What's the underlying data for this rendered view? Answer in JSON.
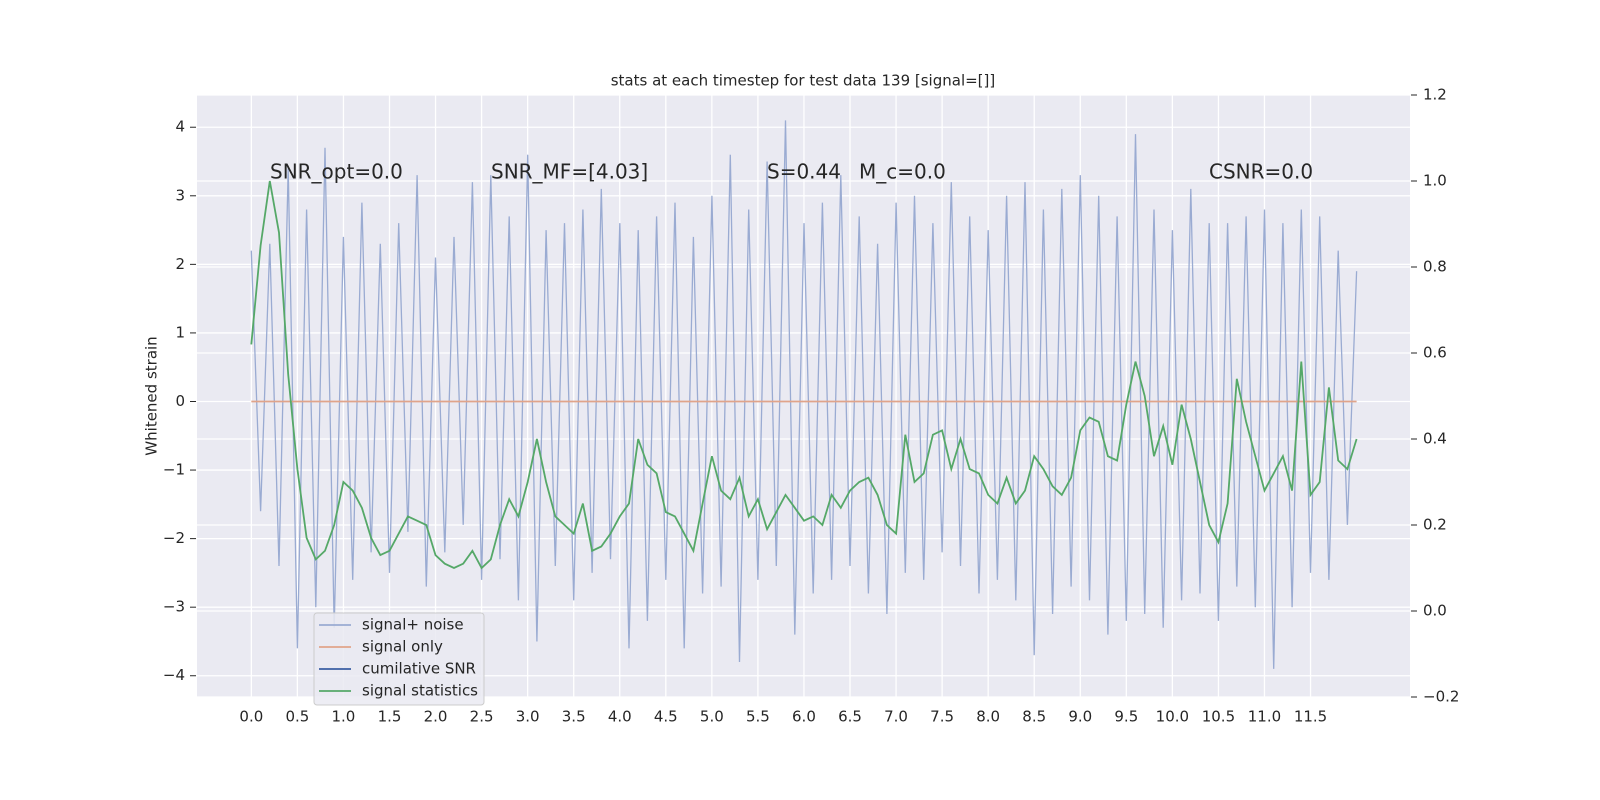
{
  "chart_data": {
    "type": "line",
    "title": "stats at each timestep for test data 139 [signal=[]]",
    "ylabel": "Whitened strain",
    "annotations": [
      "SNR_opt=0.0",
      "SNR_MF=[4.03]",
      "S=0.44",
      "M_c=0.0",
      "CSNR=0.0"
    ],
    "x": [
      0.0,
      0.1,
      0.2,
      0.3,
      0.4,
      0.5,
      0.6,
      0.7,
      0.8,
      0.9,
      1.0,
      1.1,
      1.2,
      1.3,
      1.4,
      1.5,
      1.6,
      1.7,
      1.8,
      1.9,
      2.0,
      2.1,
      2.2,
      2.3,
      2.4,
      2.5,
      2.6,
      2.7,
      2.8,
      2.9,
      3.0,
      3.1,
      3.2,
      3.3,
      3.4,
      3.5,
      3.6,
      3.7,
      3.8,
      3.9,
      4.0,
      4.1,
      4.2,
      4.3,
      4.4,
      4.5,
      4.6,
      4.7,
      4.8,
      4.9,
      5.0,
      5.1,
      5.2,
      5.3,
      5.4,
      5.5,
      5.6,
      5.7,
      5.8,
      5.9,
      6.0,
      6.1,
      6.2,
      6.3,
      6.4,
      6.5,
      6.6,
      6.7,
      6.8,
      6.9,
      7.0,
      7.1,
      7.2,
      7.3,
      7.4,
      7.5,
      7.6,
      7.7,
      7.8,
      7.9,
      8.0,
      8.1,
      8.2,
      8.3,
      8.4,
      8.5,
      8.6,
      8.7,
      8.8,
      8.9,
      9.0,
      9.1,
      9.2,
      9.3,
      9.4,
      9.5,
      9.6,
      9.7,
      9.8,
      9.9,
      10.0,
      10.1,
      10.2,
      10.3,
      10.4,
      10.5,
      10.6,
      10.7,
      10.8,
      10.9,
      11.0,
      11.1,
      11.2,
      11.3,
      11.4,
      11.5,
      11.6,
      11.7,
      11.8,
      11.9,
      12.0
    ],
    "series": [
      {
        "name": "signal+ noise",
        "color": "#9aabd2",
        "values": [
          2.2,
          -1.6,
          2.3,
          -2.4,
          3.4,
          -3.6,
          2.8,
          -3.0,
          3.7,
          -3.3,
          2.4,
          -2.6,
          2.9,
          -2.2,
          2.3,
          -2.5,
          2.6,
          -1.9,
          3.3,
          -2.7,
          2.1,
          -2.2,
          2.4,
          -1.8,
          3.2,
          -2.6,
          3.3,
          -2.3,
          2.7,
          -2.9,
          3.6,
          -3.5,
          2.5,
          -2.4,
          2.6,
          -2.9,
          2.8,
          -2.5,
          3.1,
          -2.3,
          2.6,
          -3.6,
          2.5,
          -3.2,
          2.7,
          -2.6,
          2.9,
          -3.6,
          2.4,
          -2.8,
          3.0,
          -2.7,
          3.6,
          -3.8,
          2.8,
          -2.6,
          3.5,
          -2.4,
          4.1,
          -3.4,
          2.6,
          -2.8,
          2.9,
          -2.6,
          3.3,
          -2.4,
          2.7,
          -2.8,
          2.3,
          -3.1,
          2.9,
          -2.5,
          3.0,
          -2.6,
          2.6,
          -2.2,
          3.2,
          -2.4,
          2.7,
          -2.8,
          2.5,
          -2.6,
          3.0,
          -2.9,
          3.2,
          -3.7,
          2.8,
          -3.1,
          3.1,
          -2.7,
          3.3,
          -2.9,
          3.0,
          -3.4,
          2.7,
          -3.2,
          3.9,
          -3.1,
          2.8,
          -3.3,
          2.5,
          -2.9,
          3.1,
          -2.8,
          2.6,
          -3.2,
          2.6,
          -2.7,
          2.7,
          -3.0,
          2.8,
          -3.9,
          2.6,
          -3.0,
          2.8,
          -2.5,
          2.7,
          -2.6,
          2.2,
          -1.8,
          1.9
        ]
      },
      {
        "name": "signal only",
        "color": "#e0a48a",
        "values": [
          0,
          0,
          0,
          0,
          0,
          0,
          0,
          0,
          0,
          0,
          0,
          0,
          0,
          0,
          0,
          0,
          0,
          0,
          0,
          0,
          0,
          0,
          0,
          0,
          0,
          0,
          0,
          0,
          0,
          0,
          0,
          0,
          0,
          0,
          0,
          0,
          0,
          0,
          0,
          0,
          0,
          0,
          0,
          0,
          0,
          0,
          0,
          0,
          0,
          0,
          0,
          0,
          0,
          0,
          0,
          0,
          0,
          0,
          0,
          0,
          0,
          0,
          0,
          0,
          0,
          0,
          0,
          0,
          0,
          0,
          0,
          0,
          0,
          0,
          0,
          0,
          0,
          0,
          0,
          0,
          0,
          0,
          0,
          0,
          0,
          0,
          0,
          0,
          0,
          0,
          0,
          0,
          0,
          0,
          0,
          0,
          0,
          0,
          0,
          0,
          0,
          0,
          0,
          0,
          0,
          0,
          0,
          0,
          0,
          0,
          0,
          0,
          0,
          0,
          0,
          0,
          0,
          0,
          0,
          0,
          0
        ]
      },
      {
        "name": "cumilative SNR",
        "color": "#3b5fa3"
      },
      {
        "name": "signal statistics",
        "color": "#55a868",
        "axis": "y2",
        "values": [
          0.62,
          0.85,
          1.0,
          0.88,
          0.55,
          0.33,
          0.17,
          0.12,
          0.14,
          0.2,
          0.3,
          0.28,
          0.24,
          0.17,
          0.13,
          0.14,
          0.18,
          0.22,
          0.21,
          0.2,
          0.13,
          0.11,
          0.1,
          0.11,
          0.14,
          0.1,
          0.12,
          0.2,
          0.26,
          0.22,
          0.3,
          0.4,
          0.3,
          0.22,
          0.2,
          0.18,
          0.25,
          0.14,
          0.15,
          0.18,
          0.22,
          0.25,
          0.4,
          0.34,
          0.32,
          0.23,
          0.22,
          0.18,
          0.14,
          0.25,
          0.36,
          0.28,
          0.26,
          0.31,
          0.22,
          0.26,
          0.19,
          0.23,
          0.27,
          0.24,
          0.21,
          0.22,
          0.2,
          0.27,
          0.24,
          0.28,
          0.3,
          0.31,
          0.27,
          0.2,
          0.18,
          0.41,
          0.3,
          0.32,
          0.41,
          0.42,
          0.33,
          0.4,
          0.33,
          0.32,
          0.27,
          0.25,
          0.31,
          0.25,
          0.28,
          0.36,
          0.33,
          0.29,
          0.27,
          0.31,
          0.42,
          0.45,
          0.44,
          0.36,
          0.35,
          0.48,
          0.58,
          0.5,
          0.36,
          0.43,
          0.34,
          0.48,
          0.4,
          0.3,
          0.2,
          0.16,
          0.25,
          0.54,
          0.44,
          0.36,
          0.28,
          0.32,
          0.36,
          0.28,
          0.58,
          0.27,
          0.3,
          0.52,
          0.35,
          0.33,
          0.4
        ]
      }
    ],
    "xlim": [
      -0.59,
      12.58
    ],
    "ylim": [
      -4.31,
      4.47
    ],
    "y2lim": [
      -0.2,
      1.2
    ],
    "xticks": [
      {
        "value": 0,
        "label": "0.0"
      },
      {
        "value": 0.5,
        "label": "0.5"
      },
      {
        "value": 1,
        "label": "1.0"
      },
      {
        "value": 1.5,
        "label": "1.5"
      },
      {
        "value": 2,
        "label": "2.0"
      },
      {
        "value": 2.5,
        "label": "2.5"
      },
      {
        "value": 3,
        "label": "3.0"
      },
      {
        "value": 3.5,
        "label": "3.5"
      },
      {
        "value": 4,
        "label": "4.0"
      },
      {
        "value": 4.5,
        "label": "4.5"
      },
      {
        "value": 5,
        "label": "5.0"
      },
      {
        "value": 5.5,
        "label": "5.5"
      },
      {
        "value": 6,
        "label": "6.0"
      },
      {
        "value": 6.5,
        "label": "6.5"
      },
      {
        "value": 7,
        "label": "7.0"
      },
      {
        "value": 7.5,
        "label": "7.5"
      },
      {
        "value": 8,
        "label": "8.0"
      },
      {
        "value": 8.5,
        "label": "8.5"
      },
      {
        "value": 9,
        "label": "9.0"
      },
      {
        "value": 9.5,
        "label": "9.5"
      },
      {
        "value": 10,
        "label": "10.0"
      },
      {
        "value": 10.5,
        "label": "10.5"
      },
      {
        "value": 11,
        "label": "11.0"
      },
      {
        "value": 11.5,
        "label": "11.5"
      }
    ],
    "yticks": [
      {
        "value": -4,
        "label": "−4"
      },
      {
        "value": -3,
        "label": "−3"
      },
      {
        "value": -2,
        "label": "−2"
      },
      {
        "value": -1,
        "label": "−1"
      },
      0,
      1,
      2,
      3,
      4
    ],
    "y2ticks": [
      {
        "value": -0.2,
        "label": "−0.2"
      },
      {
        "value": 0,
        "label": "0.0"
      },
      0.2,
      0.4,
      0.6,
      0.8,
      {
        "value": 1,
        "label": "1.0"
      },
      1.2
    ],
    "grid": true,
    "legend": "lower left"
  }
}
